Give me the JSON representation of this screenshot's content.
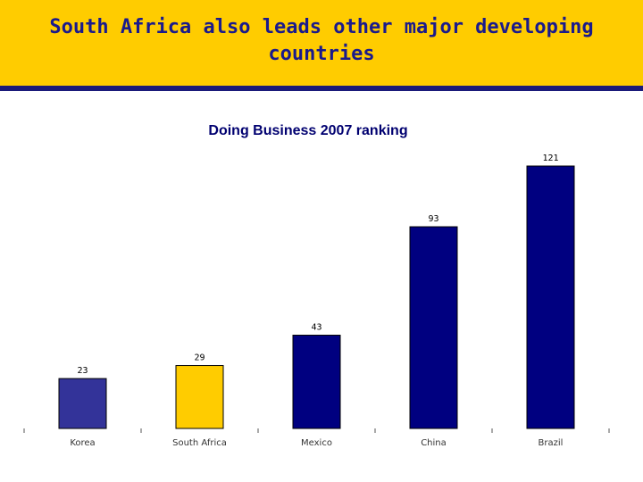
{
  "slide": {
    "title": "South Africa also leads other major developing countries"
  },
  "chart_data": {
    "type": "bar",
    "title": "Doing Business 2007 ranking",
    "categories": [
      "Korea",
      "South Africa",
      "Mexico",
      "China",
      "Brazil"
    ],
    "values": [
      23,
      29,
      43,
      93,
      121
    ],
    "data_labels": [
      "23",
      "29",
      "43",
      "93",
      "121"
    ],
    "colors": [
      "#333399",
      "#ffcc00",
      "#000080",
      "#000080",
      "#000080"
    ],
    "ylim": [
      0,
      121
    ],
    "xlabel": "",
    "ylabel": "",
    "grid": false,
    "legend": "none"
  }
}
